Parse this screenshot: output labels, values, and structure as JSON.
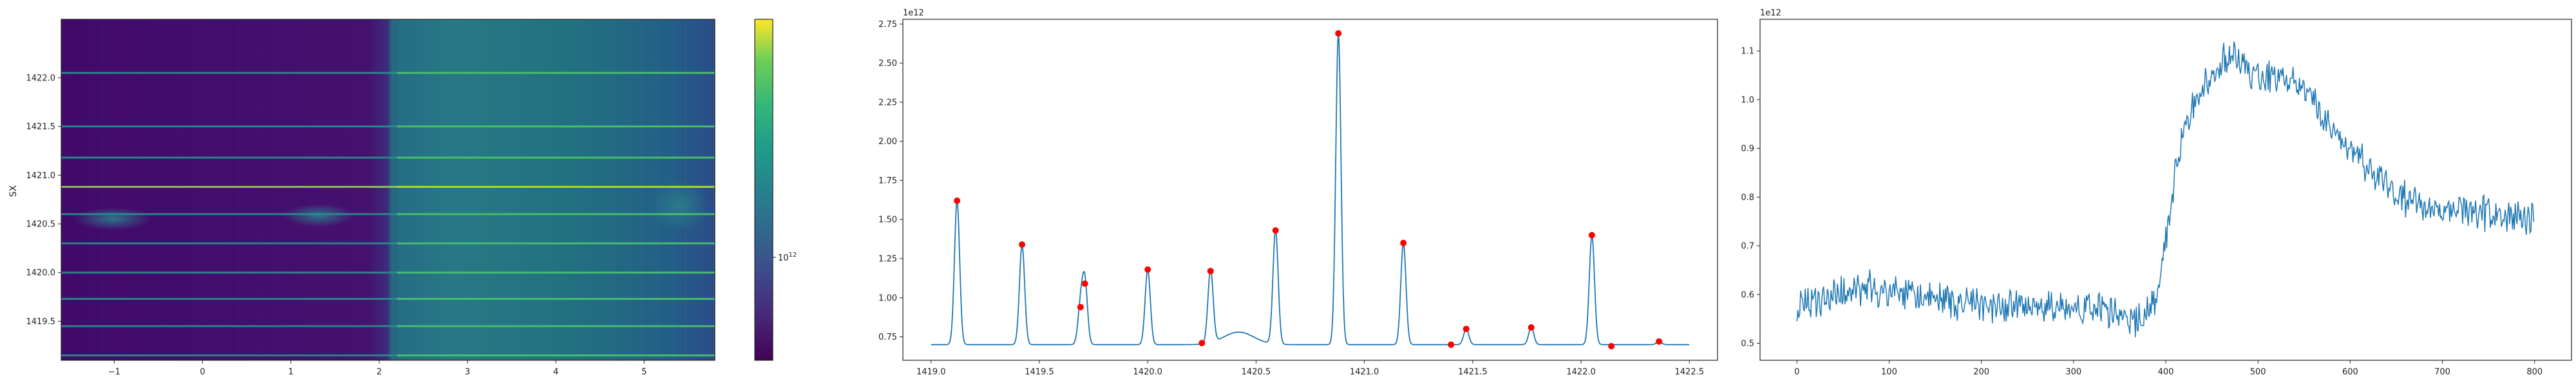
{
  "chart_data": [
    {
      "type": "heatmap",
      "ylabel": "SX",
      "x_ticks": [
        "−1",
        "0",
        "1",
        "2",
        "3",
        "4",
        "5"
      ],
      "x_tick_values": [
        -1,
        0,
        1,
        2,
        3,
        4,
        5
      ],
      "xlim": [
        -1.6,
        5.8
      ],
      "y_ticks": [
        "1419.5",
        "1420.0",
        "1420.5",
        "1421.0",
        "1421.5",
        "1422.0"
      ],
      "y_tick_values": [
        1419.5,
        1420.0,
        1420.5,
        1421.0,
        1421.5,
        1422.0
      ],
      "ylim": [
        1419.1,
        1422.6
      ],
      "colorbar": {
        "scale": "log",
        "tick_label": "10^12",
        "colormap": "viridis"
      },
      "transition_x": 2.2,
      "bright_rows": [
        1419.15,
        1419.45,
        1419.73,
        1420.0,
        1420.3,
        1420.6,
        1420.88,
        1421.18,
        1421.5,
        1422.05
      ],
      "colors": {
        "left_background": "#41086a",
        "right_background": "#23707f"
      }
    },
    {
      "type": "line",
      "offset_label": "1e12",
      "x_ticks": [
        "1419.0",
        "1419.5",
        "1420.0",
        "1420.5",
        "1421.0",
        "1421.5",
        "1422.0",
        "1422.5"
      ],
      "x_tick_values": [
        1419.0,
        1419.5,
        1420.0,
        1420.5,
        1421.0,
        1421.5,
        1422.0,
        1422.5
      ],
      "y_ticks": [
        "0.75",
        "1.00",
        "1.25",
        "1.50",
        "1.75",
        "2.00",
        "2.25",
        "2.50",
        "2.75"
      ],
      "y_tick_values": [
        0.75,
        1.0,
        1.25,
        1.5,
        1.75,
        2.0,
        2.25,
        2.5,
        2.75
      ],
      "xlim": [
        1418.87,
        1422.63
      ],
      "ylim": [
        0.6,
        2.78
      ],
      "baseline": 0.7,
      "peaks": [
        {
          "x": 1419.12,
          "y": 1.62
        },
        {
          "x": 1419.42,
          "y": 1.34
        },
        {
          "x": 1419.69,
          "y": 0.94
        },
        {
          "x": 1419.71,
          "y": 1.09
        },
        {
          "x": 1420.0,
          "y": 1.18
        },
        {
          "x": 1420.25,
          "y": 0.71
        },
        {
          "x": 1420.29,
          "y": 1.17
        },
        {
          "x": 1420.59,
          "y": 1.43
        },
        {
          "x": 1420.88,
          "y": 2.69
        },
        {
          "x": 1421.18,
          "y": 1.35
        },
        {
          "x": 1421.4,
          "y": 0.7
        },
        {
          "x": 1421.47,
          "y": 0.8
        },
        {
          "x": 1421.77,
          "y": 0.81
        },
        {
          "x": 1422.05,
          "y": 1.4
        },
        {
          "x": 1422.14,
          "y": 0.69
        },
        {
          "x": 1422.36,
          "y": 0.72
        }
      ],
      "bump": {
        "center": 1420.42,
        "height": 0.78
      },
      "colors": {
        "line": "#1f77b4",
        "markers": "#ff0000"
      }
    },
    {
      "type": "line",
      "offset_label": "1e12",
      "x_ticks": [
        "0",
        "100",
        "200",
        "300",
        "400",
        "500",
        "600",
        "700",
        "800"
      ],
      "x_tick_values": [
        0,
        100,
        200,
        300,
        400,
        500,
        600,
        700,
        800
      ],
      "y_ticks": [
        "0.5",
        "0.6",
        "0.7",
        "0.8",
        "0.9",
        "1.0",
        "1.1"
      ],
      "y_tick_values": [
        0.5,
        0.6,
        0.7,
        0.8,
        0.9,
        1.0,
        1.1
      ],
      "xlim": [
        -40,
        840
      ],
      "ylim": [
        0.465,
        1.165
      ],
      "n_points": 800,
      "trend": [
        {
          "x": 0,
          "y": 0.57
        },
        {
          "x": 40,
          "y": 0.6
        },
        {
          "x": 80,
          "y": 0.61
        },
        {
          "x": 150,
          "y": 0.59
        },
        {
          "x": 200,
          "y": 0.58
        },
        {
          "x": 260,
          "y": 0.57
        },
        {
          "x": 330,
          "y": 0.57
        },
        {
          "x": 370,
          "y": 0.54
        },
        {
          "x": 390,
          "y": 0.6
        },
        {
          "x": 400,
          "y": 0.72
        },
        {
          "x": 420,
          "y": 0.95
        },
        {
          "x": 440,
          "y": 1.02
        },
        {
          "x": 470,
          "y": 1.1
        },
        {
          "x": 490,
          "y": 1.05
        },
        {
          "x": 540,
          "y": 1.04
        },
        {
          "x": 590,
          "y": 0.92
        },
        {
          "x": 650,
          "y": 0.8
        },
        {
          "x": 700,
          "y": 0.77
        },
        {
          "x": 760,
          "y": 0.77
        },
        {
          "x": 800,
          "y": 0.75
        }
      ],
      "colors": {
        "line": "#1f77b4"
      }
    }
  ]
}
